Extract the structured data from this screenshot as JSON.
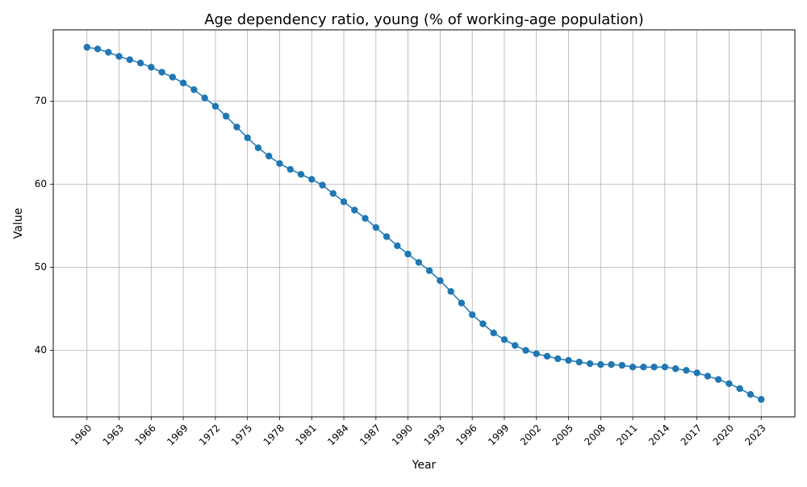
{
  "chart_data": {
    "type": "line",
    "title": "Age dependency ratio, young (% of working-age population)",
    "xlabel": "Year",
    "ylabel": "Value",
    "x": [
      1960,
      1961,
      1962,
      1963,
      1964,
      1965,
      1966,
      1967,
      1968,
      1969,
      1970,
      1971,
      1972,
      1973,
      1974,
      1975,
      1976,
      1977,
      1978,
      1979,
      1980,
      1981,
      1982,
      1983,
      1984,
      1985,
      1986,
      1987,
      1988,
      1989,
      1990,
      1991,
      1992,
      1993,
      1994,
      1995,
      1996,
      1997,
      1998,
      1999,
      2000,
      2001,
      2002,
      2003,
      2004,
      2005,
      2006,
      2007,
      2008,
      2009,
      2010,
      2011,
      2012,
      2013,
      2014,
      2015,
      2016,
      2017,
      2018,
      2019,
      2020,
      2021,
      2022,
      2023
    ],
    "series": [
      {
        "name": "",
        "color": "#1f77b4",
        "values": [
          76.5,
          76.3,
          75.9,
          75.4,
          75.0,
          74.6,
          74.1,
          73.5,
          72.9,
          72.2,
          71.4,
          70.4,
          69.4,
          68.2,
          66.9,
          65.6,
          64.4,
          63.4,
          62.5,
          61.8,
          61.2,
          60.6,
          59.9,
          58.9,
          57.9,
          56.9,
          55.9,
          54.8,
          53.7,
          52.6,
          51.6,
          50.6,
          49.6,
          48.4,
          47.1,
          45.7,
          44.3,
          43.2,
          42.1,
          41.3,
          40.6,
          40.0,
          39.6,
          39.3,
          39.0,
          38.8,
          38.6,
          38.4,
          38.3,
          38.3,
          38.2,
          38.0,
          38.0,
          38.0,
          38.0,
          37.8,
          37.6,
          37.3,
          36.9,
          36.5,
          36.0,
          35.4,
          34.7,
          34.1
        ]
      }
    ],
    "xticks": [
      1960,
      1963,
      1966,
      1969,
      1972,
      1975,
      1978,
      1981,
      1984,
      1987,
      1990,
      1993,
      1996,
      1999,
      2002,
      2005,
      2008,
      2011,
      2014,
      2017,
      2020,
      2023
    ],
    "yticks": [
      40,
      50,
      60,
      70
    ],
    "xlim": [
      1956.85,
      2026.15
    ],
    "ylim": [
      32.0,
      78.6
    ],
    "grid": true,
    "legend": "none"
  }
}
